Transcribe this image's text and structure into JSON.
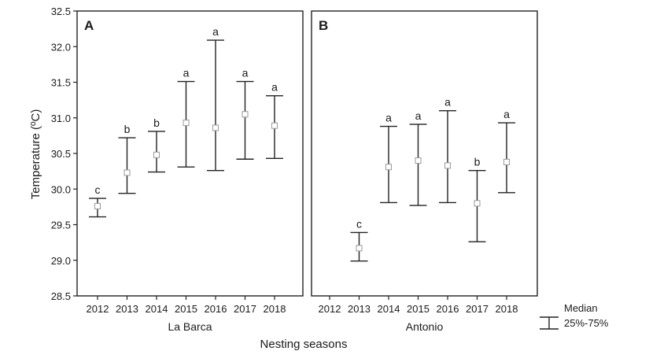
{
  "chart_data": [
    {
      "type": "box",
      "panel_label": "A",
      "xlabel": "La Barca",
      "ylabel": "Temperature (ºC)",
      "ylim": [
        28.5,
        32.5
      ],
      "yticks": [
        "28.5",
        "29.0",
        "29.5",
        "30.0",
        "30.5",
        "31.0",
        "31.5",
        "32.0",
        "32.5"
      ],
      "categories": [
        "2012",
        "2013",
        "2014",
        "2015",
        "2016",
        "2017",
        "2018"
      ],
      "median": [
        29.76,
        30.23,
        30.48,
        30.93,
        30.86,
        31.05,
        30.89
      ],
      "q1": [
        29.61,
        29.94,
        30.24,
        30.31,
        30.26,
        30.42,
        30.43
      ],
      "q3": [
        29.87,
        30.72,
        30.81,
        31.51,
        32.09,
        31.51,
        31.31
      ],
      "letters": [
        "c",
        "b",
        "b",
        "a",
        "a",
        "a",
        "a"
      ]
    },
    {
      "type": "box",
      "panel_label": "B",
      "xlabel": "Antonio",
      "ylabel": "",
      "ylim": [
        28.5,
        32.5
      ],
      "categories": [
        "2012",
        "2013",
        "2014",
        "2015",
        "2016",
        "2017",
        "2018"
      ],
      "median": [
        null,
        29.17,
        30.31,
        30.4,
        30.33,
        29.8,
        30.38
      ],
      "q1": [
        null,
        28.99,
        29.81,
        29.77,
        29.81,
        29.26,
        29.95
      ],
      "q3": [
        null,
        29.39,
        30.88,
        30.91,
        31.1,
        30.26,
        30.93
      ],
      "letters": [
        "",
        "c",
        "a",
        "a",
        "a",
        "b",
        "a"
      ]
    }
  ],
  "shared_xlabel": "Nesting seasons",
  "legend": {
    "median_label": "Median",
    "range_label": "25%-75%"
  }
}
